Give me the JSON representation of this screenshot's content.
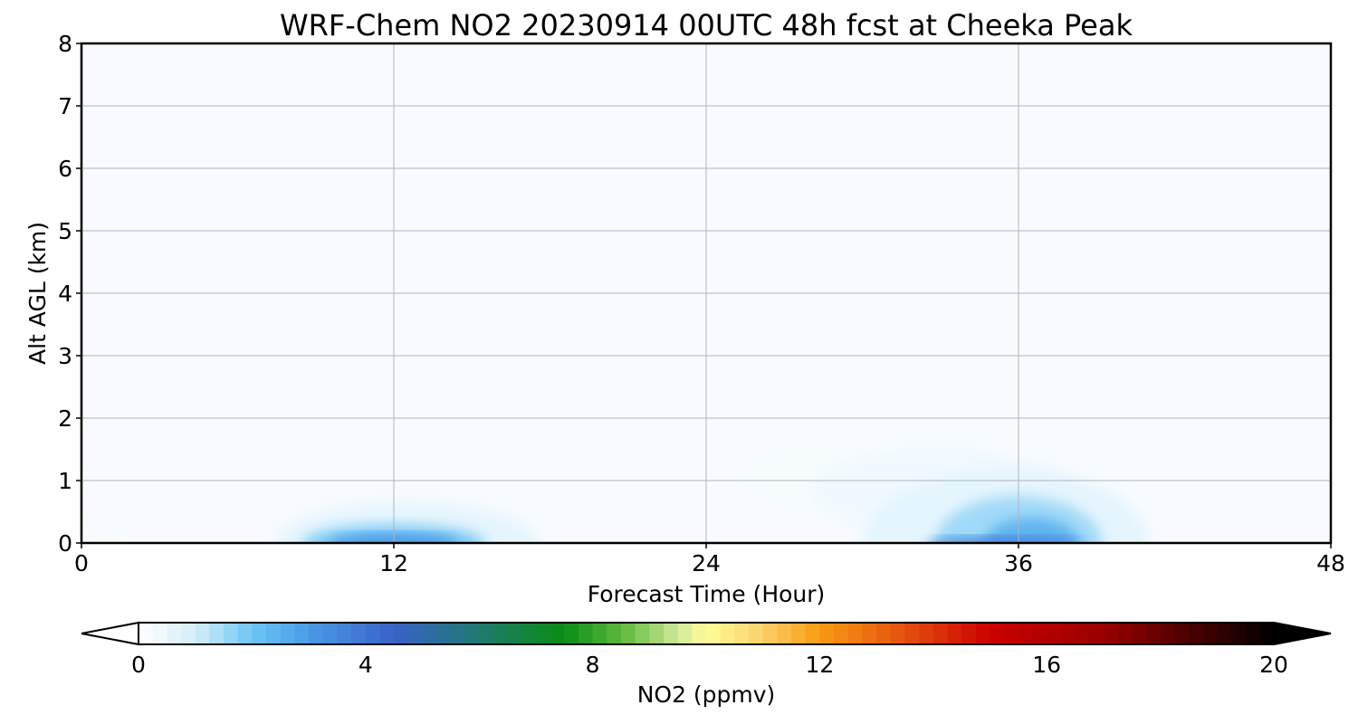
{
  "chart_data": {
    "type": "heatmap",
    "title": "WRF-Chem NO2  20230914 00UTC 48h fcst at Cheeka Peak",
    "xlabel": "Forecast Time (Hour)",
    "ylabel": "Alt AGL (km)",
    "xlim": [
      0,
      48
    ],
    "ylim": [
      0,
      8
    ],
    "x_ticks": [
      0,
      12,
      24,
      36,
      48
    ],
    "y_ticks": [
      0,
      1,
      2,
      3,
      4,
      5,
      6,
      7,
      8
    ],
    "grid": true,
    "colorbar": {
      "label": "NO2  (ppmv)",
      "range": [
        0,
        20
      ],
      "ticks": [
        0,
        4,
        8,
        12,
        16,
        20
      ],
      "extend": "both",
      "stops": [
        {
          "v": 0,
          "c": "#ffffff"
        },
        {
          "v": 1,
          "c": "#d4eefb"
        },
        {
          "v": 2,
          "c": "#6cc6f5"
        },
        {
          "v": 3,
          "c": "#4a9ae6"
        },
        {
          "v": 4.5,
          "c": "#3a62c8"
        },
        {
          "v": 6,
          "c": "#1f7a6e"
        },
        {
          "v": 7.5,
          "c": "#0a8c16"
        },
        {
          "v": 8.5,
          "c": "#5cb83a"
        },
        {
          "v": 9.5,
          "c": "#cfe89a"
        },
        {
          "v": 10,
          "c": "#ffff99"
        },
        {
          "v": 11,
          "c": "#fcd06a"
        },
        {
          "v": 12,
          "c": "#f99b12"
        },
        {
          "v": 13.5,
          "c": "#e55010"
        },
        {
          "v": 15,
          "c": "#cc0000"
        },
        {
          "v": 17,
          "c": "#9a0000"
        },
        {
          "v": 18.5,
          "c": "#4a0000"
        },
        {
          "v": 20,
          "c": "#000000"
        }
      ]
    },
    "field_regions": [
      {
        "t": 0.0,
        "z": 0.0,
        "dt": 2.0,
        "dz": 0.2,
        "value": 0.2
      },
      {
        "t": 12.5,
        "z": 0.0,
        "dt": 5.0,
        "dz": 0.65,
        "value": 0.6
      },
      {
        "t": 12.0,
        "z": 0.0,
        "dt": 3.5,
        "dz": 0.3,
        "value": 1.8
      },
      {
        "t": 12.0,
        "z": 0.0,
        "dt": 2.5,
        "dz": 0.15,
        "value": 3.0
      },
      {
        "t": 28.0,
        "z": 1.1,
        "dt": 2.8,
        "dz": 0.45,
        "value": 0.2
      },
      {
        "t": 33.0,
        "z": 0.85,
        "dt": 5.0,
        "dz": 0.65,
        "value": 0.35
      },
      {
        "t": 35.5,
        "z": 0.0,
        "dt": 5.5,
        "dz": 1.2,
        "value": 0.6
      },
      {
        "t": 36.0,
        "z": 0.0,
        "dt": 3.2,
        "dz": 0.75,
        "value": 1.5
      },
      {
        "t": 36.5,
        "z": 0.0,
        "dt": 1.8,
        "dz": 0.4,
        "value": 2.4
      },
      {
        "t": 35.5,
        "z": 0.0,
        "dt": 3.0,
        "dz": 0.1,
        "value": 3.6
      }
    ]
  }
}
